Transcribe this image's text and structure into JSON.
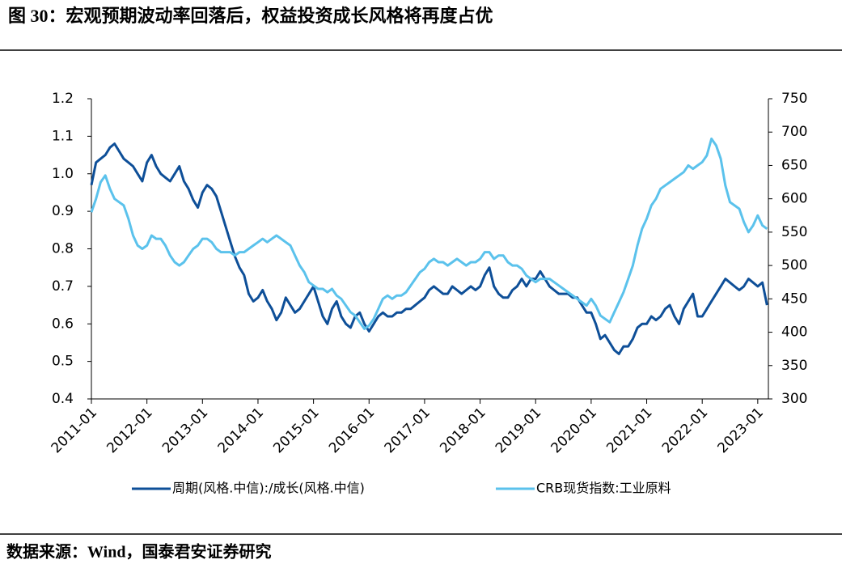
{
  "chart_data": {
    "type": "line",
    "title": "图 30：宏观预期波动率回落后，权益投资成长风格将再度占优",
    "source": "数据来源：Wind，国泰君安证券研究",
    "categories": [
      "2011-01",
      null,
      null,
      null,
      null,
      null,
      null,
      null,
      null,
      null,
      null,
      null,
      "2012-01",
      null,
      null,
      null,
      null,
      null,
      null,
      null,
      null,
      null,
      null,
      null,
      "2013-01",
      null,
      null,
      null,
      null,
      null,
      null,
      null,
      null,
      null,
      null,
      null,
      "2014-01",
      null,
      null,
      null,
      null,
      null,
      null,
      null,
      null,
      null,
      null,
      null,
      "2015-01",
      null,
      null,
      null,
      null,
      null,
      null,
      null,
      null,
      null,
      null,
      null,
      "2016-01",
      null,
      null,
      null,
      null,
      null,
      null,
      null,
      null,
      null,
      null,
      null,
      "2017-01",
      null,
      null,
      null,
      null,
      null,
      null,
      null,
      null,
      null,
      null,
      null,
      "2018-01",
      null,
      null,
      null,
      null,
      null,
      null,
      null,
      null,
      null,
      null,
      null,
      "2019-01",
      null,
      null,
      null,
      null,
      null,
      null,
      null,
      null,
      null,
      null,
      null,
      "2020-01",
      null,
      null,
      null,
      null,
      null,
      null,
      null,
      null,
      null,
      null,
      null,
      "2021-01",
      null,
      null,
      null,
      null,
      null,
      null,
      null,
      null,
      null,
      null,
      null,
      "2022-01",
      null,
      null,
      null,
      null,
      null,
      null,
      null,
      null,
      null,
      null,
      null,
      "2023-01",
      null,
      null
    ],
    "series": [
      {
        "name": "周期(风格.中信):/成长(风格.中信)",
        "color": "#0e4f98",
        "axis": "y",
        "values": [
          0.97,
          1.03,
          1.04,
          1.05,
          1.07,
          1.08,
          1.06,
          1.04,
          1.03,
          1.02,
          1.0,
          0.98,
          1.03,
          1.05,
          1.02,
          1.0,
          0.99,
          0.98,
          1.0,
          1.02,
          0.98,
          0.96,
          0.93,
          0.91,
          0.95,
          0.97,
          0.96,
          0.94,
          0.9,
          0.86,
          0.82,
          0.78,
          0.75,
          0.73,
          0.68,
          0.66,
          0.67,
          0.69,
          0.66,
          0.64,
          0.61,
          0.63,
          0.67,
          0.65,
          0.63,
          0.64,
          0.66,
          0.68,
          0.7,
          0.66,
          0.62,
          0.6,
          0.64,
          0.66,
          0.62,
          0.6,
          0.59,
          0.62,
          0.63,
          0.6,
          0.58,
          0.6,
          0.62,
          0.63,
          0.62,
          0.62,
          0.63,
          0.63,
          0.64,
          0.64,
          0.65,
          0.66,
          0.67,
          0.69,
          0.7,
          0.69,
          0.68,
          0.68,
          0.7,
          0.69,
          0.68,
          0.69,
          0.7,
          0.69,
          0.7,
          0.73,
          0.75,
          0.7,
          0.68,
          0.67,
          0.67,
          0.69,
          0.7,
          0.72,
          0.7,
          0.72,
          0.72,
          0.74,
          0.72,
          0.7,
          0.69,
          0.68,
          0.68,
          0.68,
          0.67,
          0.67,
          0.65,
          0.63,
          0.63,
          0.6,
          0.56,
          0.57,
          0.55,
          0.53,
          0.52,
          0.54,
          0.54,
          0.56,
          0.59,
          0.6,
          0.6,
          0.62,
          0.61,
          0.62,
          0.64,
          0.65,
          0.62,
          0.6,
          0.64,
          0.66,
          0.68,
          0.62,
          0.62,
          0.64,
          0.66,
          0.68,
          0.7,
          0.72,
          0.71,
          0.7,
          0.69,
          0.7,
          0.72,
          0.71,
          0.7,
          0.71,
          0.65
        ]
      },
      {
        "name": "CRB现货指数:工业原料",
        "color": "#5bc2ec",
        "axis": "y2",
        "values": [
          580,
          600,
          625,
          635,
          615,
          600,
          595,
          590,
          570,
          545,
          530,
          525,
          530,
          545,
          540,
          540,
          530,
          515,
          505,
          500,
          505,
          515,
          525,
          530,
          540,
          540,
          535,
          525,
          520,
          520,
          520,
          515,
          520,
          520,
          525,
          530,
          535,
          540,
          535,
          540,
          545,
          540,
          535,
          530,
          515,
          500,
          490,
          475,
          470,
          465,
          465,
          460,
          465,
          455,
          450,
          440,
          430,
          425,
          415,
          405,
          410,
          420,
          435,
          450,
          455,
          450,
          455,
          455,
          460,
          470,
          480,
          490,
          495,
          505,
          510,
          505,
          505,
          500,
          505,
          510,
          505,
          500,
          505,
          505,
          510,
          520,
          520,
          510,
          515,
          515,
          505,
          500,
          500,
          495,
          485,
          480,
          475,
          480,
          480,
          480,
          475,
          470,
          465,
          460,
          455,
          450,
          445,
          440,
          450,
          440,
          425,
          420,
          415,
          430,
          445,
          460,
          480,
          500,
          530,
          555,
          570,
          590,
          600,
          615,
          620,
          625,
          630,
          635,
          640,
          650,
          645,
          650,
          655,
          665,
          690,
          680,
          660,
          620,
          595,
          590,
          585,
          565,
          550,
          560,
          575,
          560,
          555
        ]
      }
    ],
    "ylim": [
      0.4,
      1.2
    ],
    "yticks": [
      0.4,
      0.5,
      0.6,
      0.7,
      0.8,
      0.9,
      {
        "value": 1.0,
        "label": "1.0"
      },
      1.1,
      1.2
    ],
    "y2lim": [
      300,
      750
    ],
    "y2ticks": [
      300,
      350,
      400,
      450,
      500,
      550,
      600,
      650,
      700,
      750
    ],
    "legend": "bottom"
  }
}
